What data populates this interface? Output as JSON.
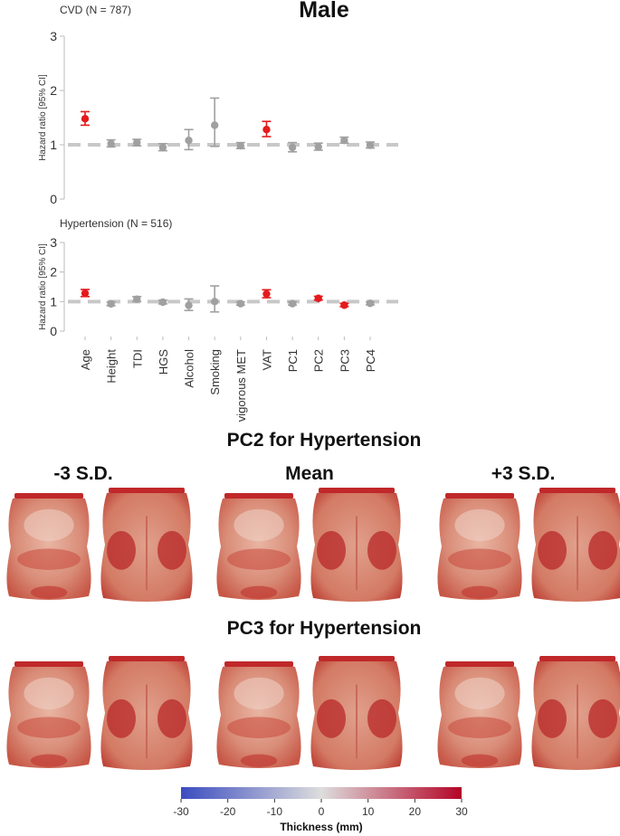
{
  "figure": {
    "title": "Male",
    "section_titles": {
      "pc2": "PC2 for Hypertension",
      "pc3": "PC3 for Hypertension"
    },
    "column_labels": [
      "-3 S.D.",
      "Mean",
      "+3 S.D."
    ]
  },
  "colorbar": {
    "ticks": [
      "-30",
      "-20",
      "-10",
      "0",
      "10",
      "20",
      "30"
    ],
    "label": "Thickness (mm)",
    "min": -30,
    "max": 30,
    "colors": [
      "#3b4cc0",
      "#dddddd",
      "#b40426"
    ]
  },
  "colors": {
    "significant": "#e41a1c",
    "nonsignificant": "#a0a0a0",
    "reference": "#c8c8c8"
  },
  "chart_data": [
    {
      "type": "scatter",
      "subtitle": "CVD (N = 787)",
      "ylabel": "Hazard ratio [95% CI]",
      "ylim": [
        0,
        3
      ],
      "yticks": [
        0,
        1,
        2,
        3
      ],
      "reference_line": 1,
      "categories": [
        "Age",
        "Height",
        "TDI",
        "HGS",
        "Alcohol",
        "Smoking",
        "vigorous MET",
        "VAT",
        "PC1",
        "PC2",
        "PC3",
        "PC4"
      ],
      "values": [
        1.48,
        1.02,
        1.04,
        0.95,
        1.08,
        1.36,
        0.98,
        1.28,
        0.95,
        0.96,
        1.08,
        0.99
      ],
      "ci_low": [
        1.36,
        0.96,
        0.98,
        0.89,
        0.91,
        0.97,
        0.93,
        1.15,
        0.87,
        0.9,
        1.03,
        0.94
      ],
      "ci_high": [
        1.61,
        1.09,
        1.1,
        1.02,
        1.28,
        1.86,
        1.04,
        1.43,
        1.04,
        1.03,
        1.14,
        1.05
      ],
      "significant": [
        true,
        false,
        false,
        false,
        false,
        false,
        false,
        true,
        false,
        false,
        false,
        false
      ]
    },
    {
      "type": "scatter",
      "subtitle": "Hypertension (N = 516)",
      "ylabel": "Hazard ratio [95% CI]",
      "ylim": [
        0,
        3
      ],
      "yticks": [
        0,
        1,
        2,
        3
      ],
      "reference_line": 1,
      "categories": [
        "Age",
        "Height",
        "TDI",
        "HGS",
        "Alcohol",
        "Smoking",
        "vigorous MET",
        "VAT",
        "PC1",
        "PC2",
        "PC3",
        "PC4"
      ],
      "values": [
        1.28,
        0.92,
        1.08,
        0.98,
        0.87,
        1.0,
        0.93,
        1.26,
        0.93,
        1.11,
        0.88,
        0.94
      ],
      "ci_low": [
        1.17,
        0.86,
        1.0,
        0.92,
        0.7,
        0.65,
        0.88,
        1.13,
        0.88,
        1.05,
        0.83,
        0.89
      ],
      "ci_high": [
        1.41,
        0.99,
        1.17,
        1.05,
        1.09,
        1.53,
        0.99,
        1.4,
        0.99,
        1.18,
        0.94,
        0.99
      ],
      "significant": [
        true,
        false,
        false,
        false,
        false,
        false,
        false,
        true,
        false,
        true,
        true,
        false
      ]
    }
  ]
}
